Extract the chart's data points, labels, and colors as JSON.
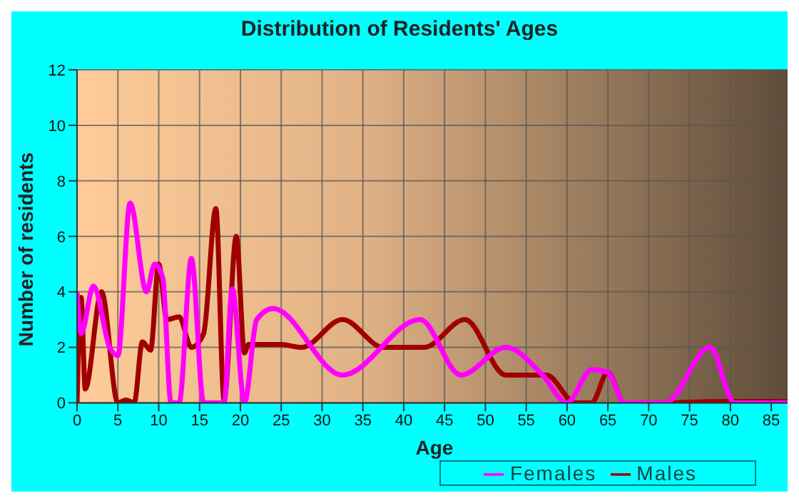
{
  "chart_data": {
    "type": "line",
    "title": "Distribution of Residents' Ages",
    "xlabel": "Age",
    "ylabel": "Number of residents",
    "xlim": [
      0,
      87
    ],
    "xticks": [
      0,
      5,
      10,
      15,
      20,
      25,
      30,
      35,
      40,
      45,
      50,
      55,
      60,
      65,
      70,
      75,
      80,
      85
    ],
    "ylim": [
      0,
      12
    ],
    "yticks": [
      0,
      2,
      4,
      6,
      8,
      10,
      12
    ],
    "grid": true,
    "legend": "bottom",
    "marker": "none",
    "line_style": "solid",
    "series": [
      {
        "name": "Males",
        "color": "#a00000",
        "x": [
          0,
          0.5,
          1,
          3,
          5,
          6,
          7,
          8,
          9,
          10,
          11,
          12.5,
          14,
          15.5,
          17,
          18,
          19.5,
          20.5,
          21,
          25,
          27.5,
          32.5,
          37.5,
          42.5,
          47.5,
          52.5,
          57.5,
          61,
          63,
          65,
          67,
          70,
          80,
          87
        ],
        "values": [
          0,
          3.8,
          0.5,
          4,
          0,
          0.1,
          0,
          2.2,
          1.9,
          5,
          3,
          3.1,
          2,
          2.5,
          7,
          0.1,
          6,
          1.8,
          2.1,
          2.1,
          2,
          3,
          2,
          2,
          3,
          1,
          1,
          0,
          0,
          1.1,
          0,
          0,
          0.05,
          0.05
        ]
      },
      {
        "name": "Females",
        "color": "#ff00ff",
        "x": [
          0,
          0.5,
          2,
          4,
          5,
          6.5,
          8.5,
          9.5,
          10.5,
          11.5,
          12.5,
          14,
          15.5,
          18,
          19,
          20.5,
          22,
          24,
          32.5,
          42,
          47,
          52.5,
          57,
          60,
          63,
          65,
          67,
          72,
          77.5,
          80.5,
          87
        ],
        "values": [
          4,
          2.5,
          4.2,
          2,
          1.7,
          7.2,
          4,
          5,
          4.5,
          0,
          0,
          5.2,
          0,
          0,
          4.1,
          0,
          3,
          3.4,
          1,
          3,
          1,
          2,
          1,
          0,
          1.2,
          1.1,
          0,
          0,
          2,
          0,
          0
        ]
      }
    ]
  }
}
